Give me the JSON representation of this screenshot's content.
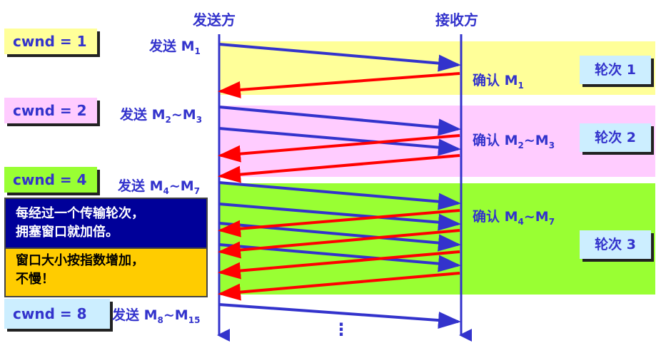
{
  "header": {
    "sender": "发送方",
    "receiver": "接收方"
  },
  "colors": {
    "round1": "#ffff99",
    "round2": "#ffccff",
    "round3": "#99ff33",
    "data_arrow": "#3333cc",
    "ack_arrow": "#ff0000"
  },
  "cwnd": [
    {
      "label": "cwnd = 1",
      "color": "#ffff99"
    },
    {
      "label": "cwnd = 2",
      "color": "#ffccff"
    },
    {
      "label": "cwnd = 4",
      "color": "#99ff33"
    },
    {
      "label": "cwnd = 8",
      "color": "#cceeff"
    }
  ],
  "send": [
    {
      "prefix": "发送 M",
      "a": "1",
      "sep": "",
      "b": ""
    },
    {
      "prefix": "发送 M",
      "a": "2",
      "sep": "~M",
      "b": "3"
    },
    {
      "prefix": "发送 M",
      "a": "4",
      "sep": "~M",
      "b": "7"
    },
    {
      "prefix": "发送 M",
      "a": "8",
      "sep": "~M",
      "b": "15"
    }
  ],
  "ack": [
    {
      "prefix": "确认 M",
      "a": "1",
      "sep": "",
      "b": ""
    },
    {
      "prefix": "确认 M",
      "a": "2",
      "sep": "~M",
      "b": "3"
    },
    {
      "prefix": "确认 M",
      "a": "4",
      "sep": "~M",
      "b": "7"
    }
  ],
  "rounds": [
    "轮次 1",
    "轮次 2",
    "轮次 3"
  ],
  "note": {
    "line1": "每经过一个传输轮次，",
    "line2": "拥塞窗口就加倍。",
    "line3": "窗口大小按指数增加，",
    "line4": "不慢！"
  },
  "ellipsis": "⋮"
}
